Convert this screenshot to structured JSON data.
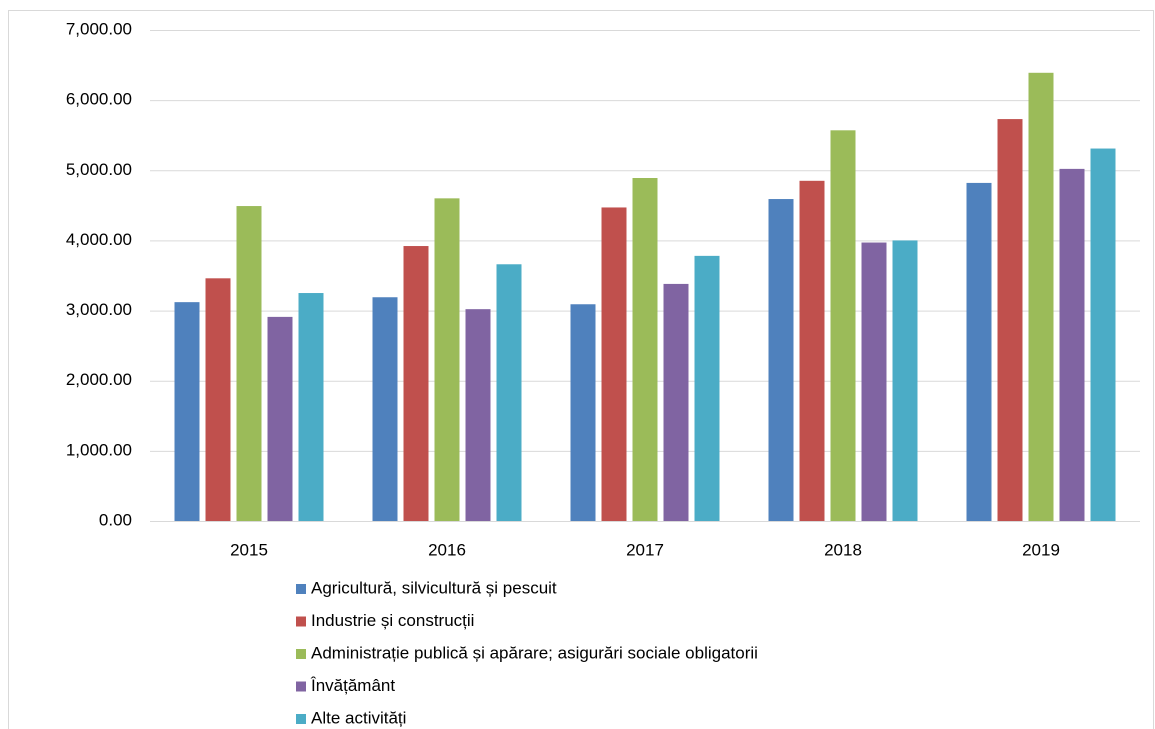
{
  "chart_data": {
    "type": "bar",
    "categories": [
      "2015",
      "2016",
      "2017",
      "2018",
      "2019"
    ],
    "series": [
      {
        "name": "Agricultură, silvicultură și pescuit",
        "color": "#4f81bd",
        "values": [
          3120,
          3190,
          3090,
          4590,
          4820
        ]
      },
      {
        "name": "Industrie și construcții",
        "color": "#c0504d",
        "values": [
          3460,
          3920,
          4470,
          4850,
          5730
        ]
      },
      {
        "name": "Administrație publică și apărare; asigurări sociale obligatorii",
        "color": "#9bbb59",
        "values": [
          4490,
          4600,
          4890,
          5570,
          6390
        ]
      },
      {
        "name": "Învățământ",
        "color": "#8064a2",
        "values": [
          2910,
          3020,
          3380,
          3970,
          5020
        ]
      },
      {
        "name": "Alte activități",
        "color": "#4bacc6",
        "values": [
          3250,
          3660,
          3780,
          4000,
          5310
        ]
      }
    ],
    "ylim": [
      0,
      7000
    ],
    "yticks": [
      {
        "value": 0,
        "label": "0.00"
      },
      {
        "value": 1000,
        "label": "1,000.00"
      },
      {
        "value": 2000,
        "label": "2,000.00"
      },
      {
        "value": 3000,
        "label": "3,000.00"
      },
      {
        "value": 4000,
        "label": "4,000.00"
      },
      {
        "value": 5000,
        "label": "5,000.00"
      },
      {
        "value": 6000,
        "label": "6,000.00"
      },
      {
        "value": 7000,
        "label": "7,000.00"
      }
    ],
    "grid": true,
    "legend": "bottom"
  }
}
